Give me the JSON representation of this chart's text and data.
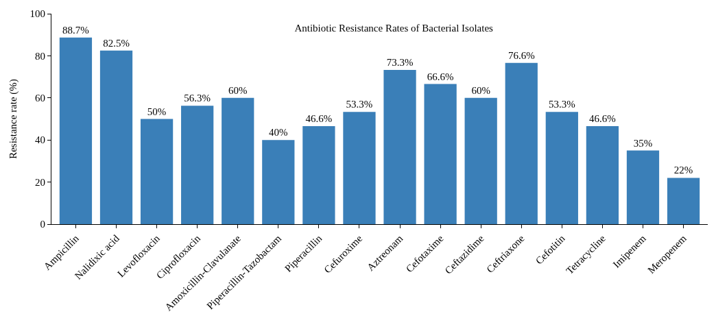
{
  "chart_data": {
    "type": "bar",
    "title": "Antibiotic Resistance Rates of Bacterial Isolates",
    "ylabel": "Resistance rate (%)",
    "categories": [
      "Ampicillin",
      "Nalidixic acid",
      "Levofloxacin",
      "Ciprofloxacin",
      "Amoxicillin-Clavulanate",
      "Piperacillin-Tazobactam",
      "Piperacillin",
      "Cefuroxime",
      "Aztreonam",
      "Cefotaxime",
      "Ceftazidime",
      "Ceftriaxone",
      "Cefotitin",
      "Tetracycline",
      "Imipenem",
      "Meropenem"
    ],
    "values": [
      88.7,
      82.5,
      50,
      56.3,
      60,
      40,
      46.6,
      53.3,
      73.3,
      66.6,
      60,
      76.6,
      53.3,
      46.6,
      35,
      22
    ],
    "value_labels": [
      "88.7%",
      "82.5%",
      "50%",
      "56.3%",
      "60%",
      "40%",
      "46.6%",
      "53.3%",
      "73.3%",
      "66.6%",
      "60%",
      "76.6%",
      "53.3%",
      "46.6%",
      "35%",
      "22%"
    ],
    "color": "#3a7fb8",
    "ylim": [
      0,
      100
    ],
    "yticks": [
      0,
      20,
      40,
      60,
      80,
      100
    ]
  }
}
